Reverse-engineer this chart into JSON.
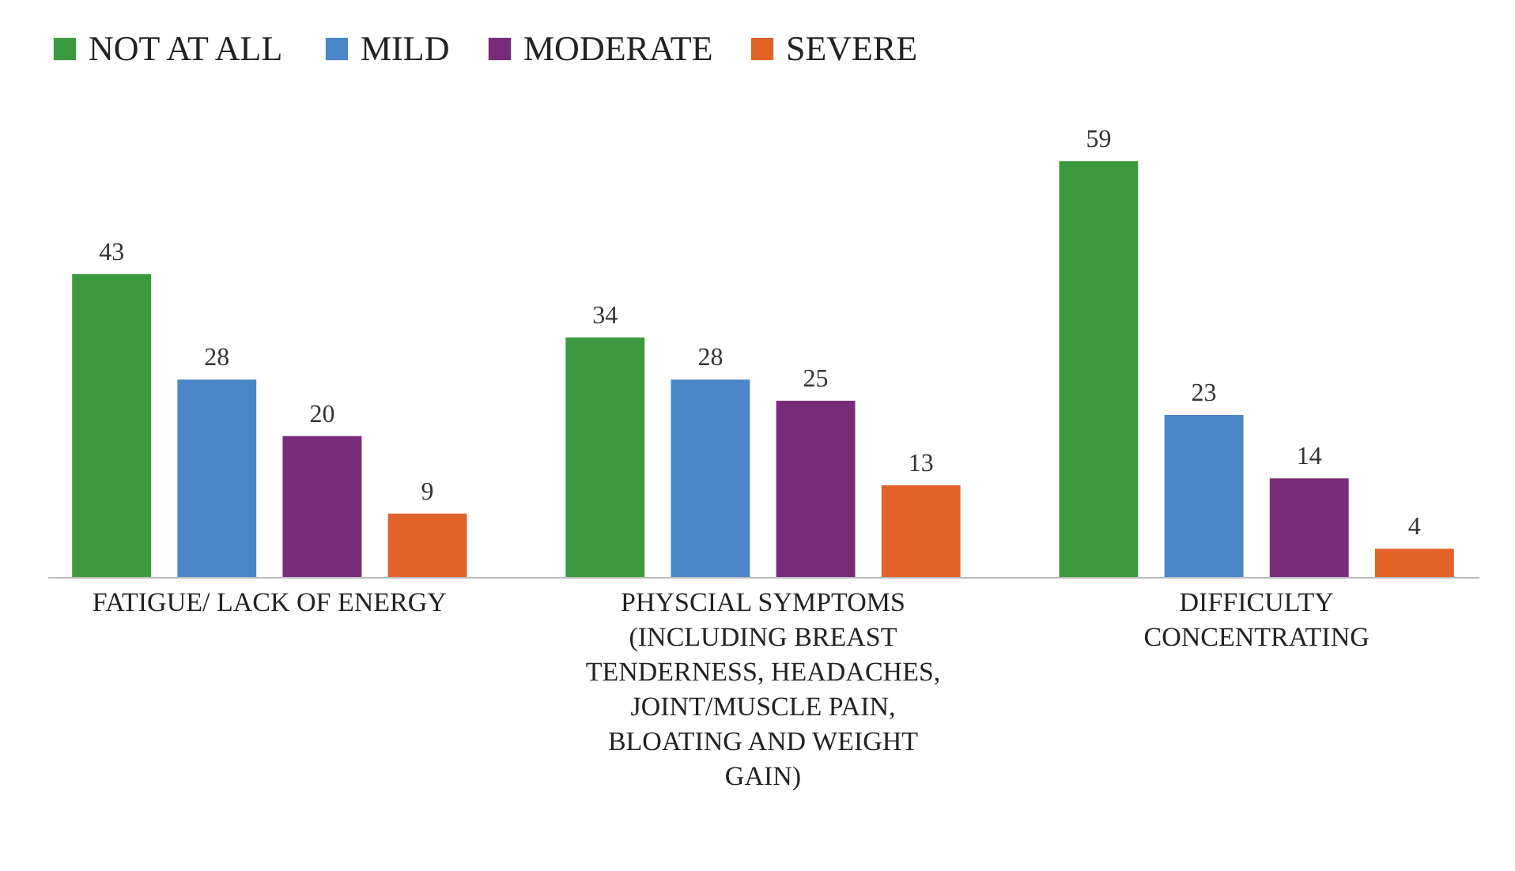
{
  "chart_data": {
    "type": "bar",
    "categories": [
      "FATIGUE/ LACK OF ENERGY",
      "PHYSCIAL SYMPTOMS (INCLUDING BREAST TENDERNESS, HEADACHES, JOINT/MUSCLE PAIN, BLOATING AND WEIGHT GAIN)",
      "DIFFICULTY CONCENTRATING"
    ],
    "series": [
      {
        "name": "NOT AT ALL",
        "color": "#3c9a3e",
        "values": [
          43,
          34,
          59
        ]
      },
      {
        "name": "MILD",
        "color": "#4a86c8",
        "values": [
          28,
          28,
          23
        ]
      },
      {
        "name": "MODERATE",
        "color": "#772b78",
        "values": [
          20,
          25,
          14
        ]
      },
      {
        "name": "SEVERE",
        "color": "#e2622a",
        "values": [
          9,
          13,
          4
        ]
      }
    ],
    "data_labels": true,
    "legend": "top",
    "grid": false
  }
}
